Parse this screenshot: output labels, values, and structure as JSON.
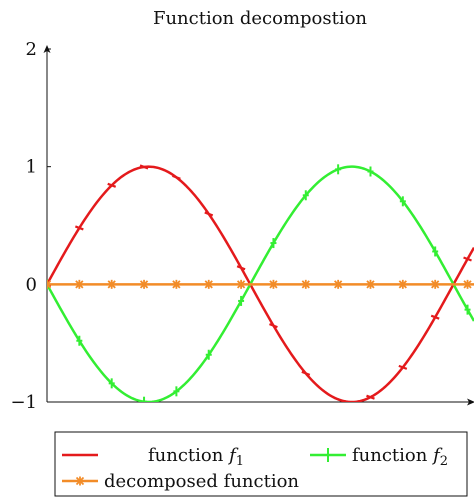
{
  "chart_data": {
    "type": "line",
    "title": "Function decompostion",
    "xlabel": "",
    "ylabel": "",
    "xlim": [
      0,
      6.6
    ],
    "ylim": [
      -1,
      2
    ],
    "yticks": [
      {
        "value": 2,
        "label": "2"
      },
      {
        "value": 1,
        "label": "1"
      },
      {
        "value": 0,
        "label": "0"
      },
      {
        "value": -1,
        "label": "−1"
      }
    ],
    "grid": false,
    "legend_position": "bottom",
    "series": [
      {
        "name": "function",
        "name_italic": "f",
        "name_sub": "1",
        "color": "#e41a1c",
        "marker": "bar",
        "function": "sin(x)"
      },
      {
        "name": "function",
        "name_italic": "f",
        "name_sub": "2",
        "color": "#33ee33",
        "marker": "plus",
        "function": "-sin(x)"
      },
      {
        "name": "decomposed function",
        "color": "#f28c28",
        "marker": "star",
        "function": "0"
      }
    ],
    "marker_x_step": 0.5
  }
}
